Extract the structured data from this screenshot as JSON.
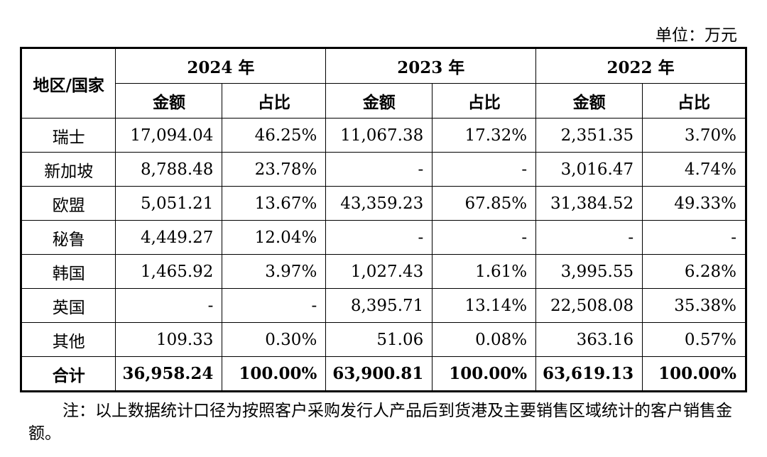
{
  "unit": "单位：万元",
  "header": {
    "region": "地区/国家",
    "years": [
      "2024 年",
      "2023 年",
      "2022 年"
    ],
    "amount": "金额",
    "ratio": "占比"
  },
  "rows": [
    {
      "region": "瑞士",
      "v": [
        "17,094.04",
        "46.25%",
        "11,067.38",
        "17.32%",
        "2,351.35",
        "3.70%"
      ]
    },
    {
      "region": "新加坡",
      "v": [
        "8,788.48",
        "23.78%",
        "-",
        "-",
        "3,016.47",
        "4.74%"
      ]
    },
    {
      "region": "欧盟",
      "v": [
        "5,051.21",
        "13.67%",
        "43,359.23",
        "67.85%",
        "31,384.52",
        "49.33%"
      ]
    },
    {
      "region": "秘鲁",
      "v": [
        "4,449.27",
        "12.04%",
        "-",
        "-",
        "-",
        "-"
      ]
    },
    {
      "region": "韩国",
      "v": [
        "1,465.92",
        "3.97%",
        "1,027.43",
        "1.61%",
        "3,995.55",
        "6.28%"
      ]
    },
    {
      "region": "英国",
      "v": [
        "-",
        "-",
        "8,395.71",
        "13.14%",
        "22,508.08",
        "35.38%"
      ]
    },
    {
      "region": "其他",
      "v": [
        "109.33",
        "0.30%",
        "51.06",
        "0.08%",
        "363.16",
        "0.57%"
      ]
    }
  ],
  "total": {
    "region": "合计",
    "v": [
      "36,958.24",
      "100.00%",
      "63,900.81",
      "100.00%",
      "63,619.13",
      "100.00%"
    ]
  },
  "note": "注：以上数据统计口径为按照客户采购发行人产品后到货港及主要销售区域统计的客户销售金额。"
}
